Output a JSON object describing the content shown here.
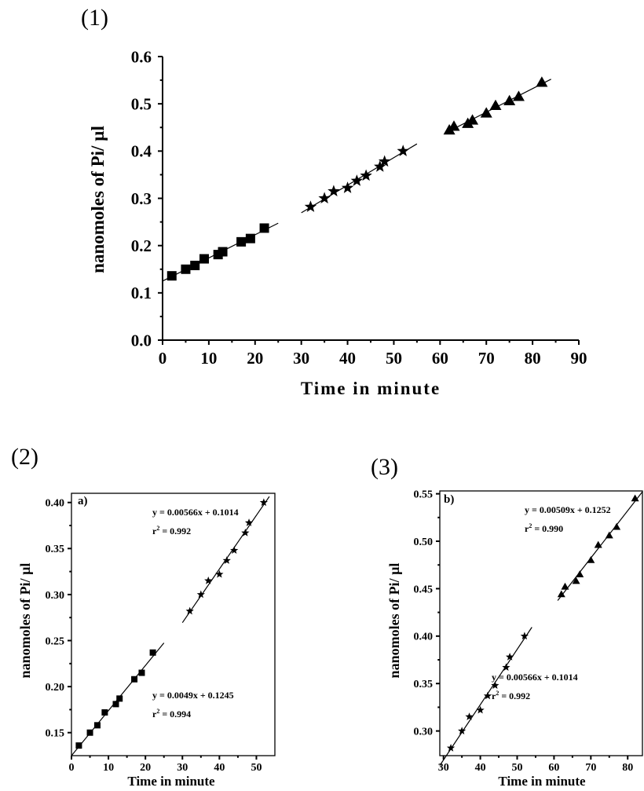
{
  "panels": [
    {
      "label": "(1)"
    },
    {
      "label": "(2)"
    },
    {
      "label": "(3)"
    }
  ],
  "chart_data": [
    {
      "type": "scatter",
      "xlabel": "Time in minute",
      "ylabel": "nanomoles of Pi/ µl",
      "xlim": [
        0,
        90
      ],
      "ylim": [
        0.0,
        0.6
      ],
      "xticks": [
        0,
        10,
        20,
        30,
        40,
        50,
        60,
        70,
        80,
        90
      ],
      "yticks": [
        "0.0",
        "0.1",
        "0.2",
        "0.3",
        "0.4",
        "0.5",
        "0.6"
      ],
      "series": [
        {
          "marker": "square",
          "x": [
            2,
            5,
            7,
            9,
            12,
            13,
            17,
            19,
            22
          ],
          "y": [
            0.136,
            0.15,
            0.158,
            0.172,
            0.181,
            0.187,
            0.208,
            0.215,
            0.237
          ],
          "fit": [
            0,
            25
          ]
        },
        {
          "marker": "star",
          "x": [
            32,
            35,
            37,
            40,
            42,
            44,
            47,
            48,
            52
          ],
          "y": [
            0.282,
            0.3,
            0.315,
            0.322,
            0.337,
            0.348,
            0.367,
            0.378,
            0.4
          ],
          "fit": [
            30,
            55
          ]
        },
        {
          "marker": "triangle",
          "x": [
            62,
            63,
            66,
            67,
            70,
            72,
            75,
            77,
            82
          ],
          "y": [
            0.444,
            0.452,
            0.458,
            0.465,
            0.48,
            0.496,
            0.506,
            0.515,
            0.545
          ],
          "fit": [
            61,
            84
          ]
        }
      ]
    },
    {
      "type": "scatter",
      "xlabel": "Time in minute",
      "ylabel": "nanomoles of Pi/ µl",
      "panel_tag": "a)",
      "xlim": [
        0,
        55
      ],
      "ylim": [
        0.125,
        0.41
      ],
      "xticks": [
        0,
        10,
        20,
        30,
        40,
        50
      ],
      "yticks": [
        "0.15",
        "0.20",
        "0.25",
        "0.30",
        "0.35",
        "0.40"
      ],
      "series": [
        {
          "marker": "square",
          "x": [
            2,
            5,
            7,
            9,
            12,
            13,
            17,
            19,
            22
          ],
          "y": [
            0.136,
            0.15,
            0.158,
            0.172,
            0.181,
            0.187,
            0.208,
            0.215,
            0.237
          ],
          "fit": [
            0,
            25
          ]
        },
        {
          "marker": "star",
          "x": [
            32,
            35,
            37,
            40,
            42,
            44,
            47,
            48,
            52
          ],
          "y": [
            0.282,
            0.3,
            0.315,
            0.322,
            0.337,
            0.348,
            0.367,
            0.378,
            0.4
          ],
          "fit": [
            30,
            53.5
          ]
        }
      ],
      "annotations": [
        {
          "equation": "y = 0.00566x + 0.1014",
          "r2_prefix": "r",
          "r2_sup": "2",
          "r2_value": "= 0.992"
        },
        {
          "equation": "y = 0.0049x + 0.1245",
          "r2_prefix": "r",
          "r2_sup": "2",
          "r2_value": "= 0.994"
        }
      ]
    },
    {
      "type": "scatter",
      "xlabel": "Time in minute",
      "ylabel": "nanomoles of Pi/ µl",
      "panel_tag": "b)",
      "xlim": [
        29,
        84
      ],
      "ylim": [
        0.274,
        0.553
      ],
      "xticks": [
        30,
        40,
        50,
        60,
        70,
        80
      ],
      "yticks": [
        "0.30",
        "0.35",
        "0.40",
        "0.45",
        "0.50",
        "0.55"
      ],
      "series": [
        {
          "marker": "star",
          "x": [
            32,
            35,
            37,
            40,
            42,
            44,
            47,
            48,
            52
          ],
          "y": [
            0.282,
            0.3,
            0.315,
            0.322,
            0.337,
            0.348,
            0.367,
            0.378,
            0.4
          ],
          "fit": [
            29,
            54
          ]
        },
        {
          "marker": "triangle",
          "x": [
            62,
            63,
            66,
            67,
            70,
            72,
            75,
            77,
            82
          ],
          "y": [
            0.444,
            0.452,
            0.458,
            0.465,
            0.48,
            0.496,
            0.506,
            0.515,
            0.545
          ],
          "fit": [
            61,
            84
          ]
        }
      ],
      "annotations": [
        {
          "equation": "y = 0.00509x + 0.1252",
          "r2_prefix": "r",
          "r2_sup": "2",
          "r2_value": "= 0.990"
        },
        {
          "equation": "y = 0.00566x + 0.1014",
          "r2_prefix": "r",
          "r2_sup": "2",
          "r2_value": "= 0.992"
        }
      ]
    }
  ]
}
